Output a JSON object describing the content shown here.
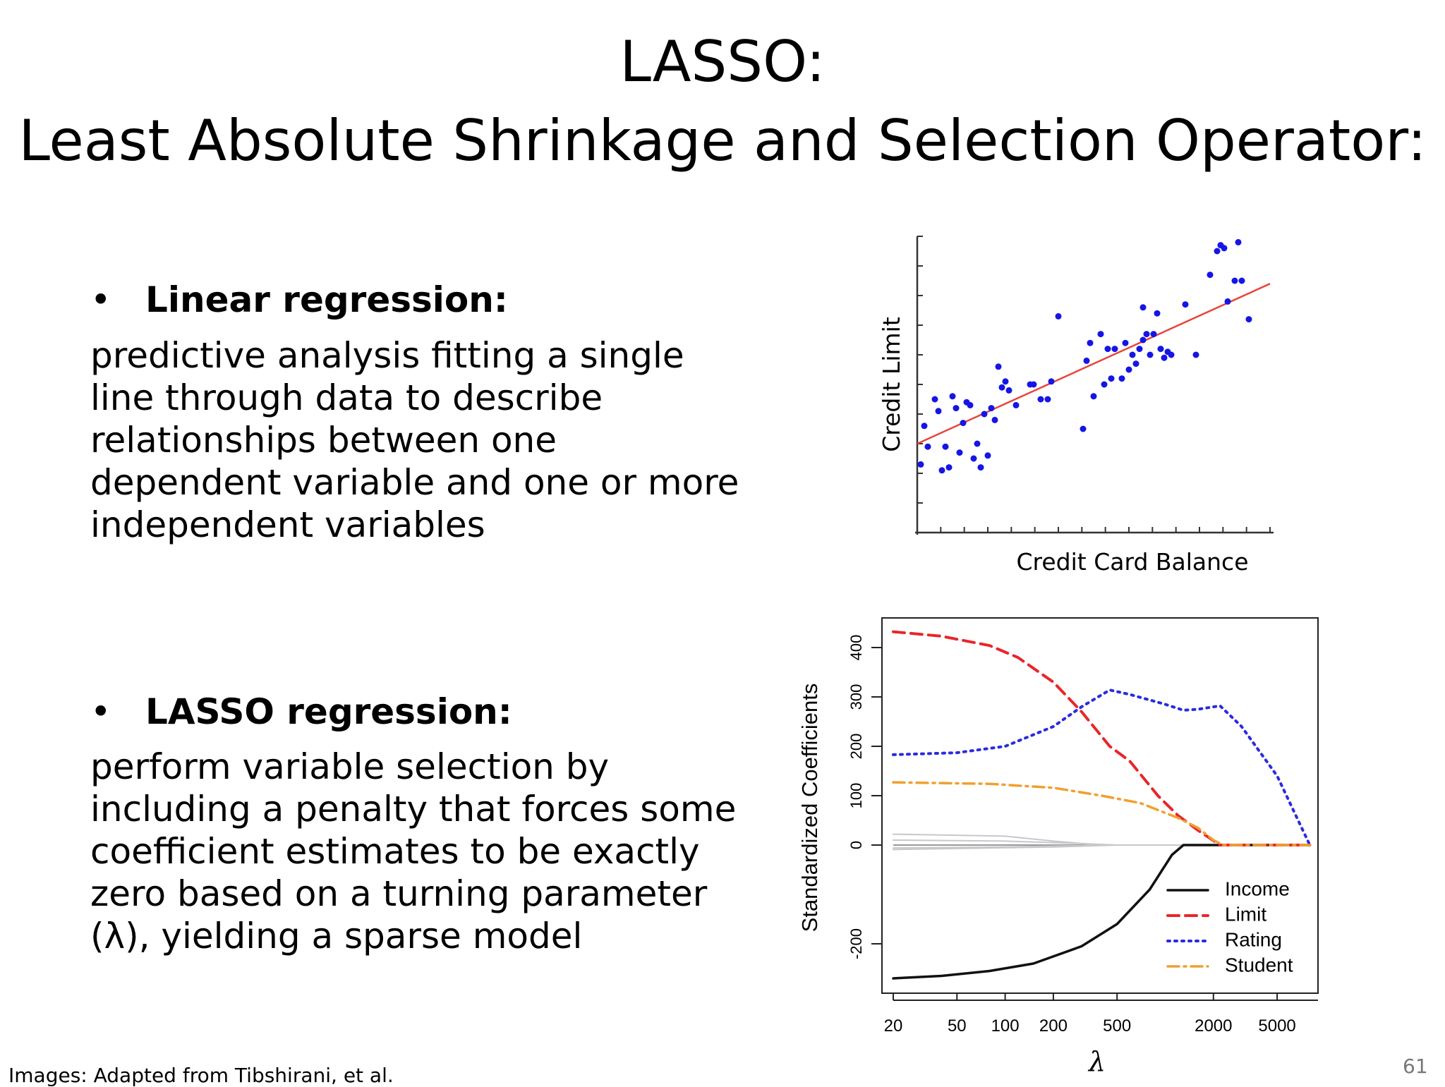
{
  "slide": {
    "title_line1": "LASSO:",
    "title_line2": "Least Absolute Shrinkage and Selection Operator:",
    "bullet_symbol": "•",
    "bullets": [
      {
        "heading": "Linear regression:",
        "text": "predictive analysis fitting a single line through data to describe relationships between one dependent variable and one or more independent variables"
      },
      {
        "heading": "LASSO regression:",
        "text": "perform variable selection by including a penalty that forces some coefficient estimates to be exactly zero based on a turning parameter (λ), yielding a sparse model"
      }
    ],
    "image_credit": "Images:  Adapted from Tibshirani, et al.",
    "page_number": "61"
  },
  "colors": {
    "points": "#1515e6",
    "fit_line": "#e8453c",
    "income": "#111111",
    "limit": "#e8262a",
    "rating": "#2b2bdd",
    "student": "#f0a030",
    "other": "#c8c8cc"
  },
  "chart_data": [
    {
      "type": "scatter",
      "xlabel": "Credit Card Balance",
      "ylabel": "Credit Limit",
      "xlim": [
        0,
        100
      ],
      "ylim": [
        0,
        100
      ],
      "grid": false,
      "points": [
        [
          1,
          23
        ],
        [
          2,
          36
        ],
        [
          3,
          29
        ],
        [
          5,
          45
        ],
        [
          6,
          41
        ],
        [
          7,
          21
        ],
        [
          8,
          29
        ],
        [
          9,
          22
        ],
        [
          10,
          46
        ],
        [
          11,
          42
        ],
        [
          12,
          27
        ],
        [
          13,
          37
        ],
        [
          14,
          44
        ],
        [
          15,
          43
        ],
        [
          16,
          25
        ],
        [
          17,
          30
        ],
        [
          18,
          22
        ],
        [
          19,
          40
        ],
        [
          20,
          26
        ],
        [
          21,
          42
        ],
        [
          22,
          38
        ],
        [
          23,
          56
        ],
        [
          24,
          49
        ],
        [
          25,
          51
        ],
        [
          26,
          48
        ],
        [
          28,
          43
        ],
        [
          32,
          50
        ],
        [
          33,
          50
        ],
        [
          35,
          45
        ],
        [
          37,
          45
        ],
        [
          38,
          51
        ],
        [
          40,
          73
        ],
        [
          47,
          35
        ],
        [
          48,
          58
        ],
        [
          49,
          64
        ],
        [
          50,
          46
        ],
        [
          52,
          67
        ],
        [
          53,
          50
        ],
        [
          54,
          62
        ],
        [
          55,
          52
        ],
        [
          56,
          62
        ],
        [
          58,
          52
        ],
        [
          59,
          64
        ],
        [
          60,
          55
        ],
        [
          61,
          60
        ],
        [
          62,
          57
        ],
        [
          63,
          62
        ],
        [
          64,
          76
        ],
        [
          64,
          65
        ],
        [
          65,
          67
        ],
        [
          66,
          60
        ],
        [
          67,
          67
        ],
        [
          68,
          74
        ],
        [
          69,
          62
        ],
        [
          70,
          59
        ],
        [
          71,
          61
        ],
        [
          72,
          60
        ],
        [
          76,
          77
        ],
        [
          79,
          60
        ],
        [
          83,
          87
        ],
        [
          85,
          95
        ],
        [
          86,
          97
        ],
        [
          87,
          96
        ],
        [
          88,
          78
        ],
        [
          90,
          85
        ],
        [
          91,
          98
        ],
        [
          92,
          85
        ],
        [
          94,
          72
        ]
      ],
      "fit_line": [
        [
          0,
          30
        ],
        [
          100,
          84
        ]
      ]
    },
    {
      "type": "line",
      "xlabel": "λ",
      "ylabel": "Standardized Coefficients",
      "x_scale": "log",
      "xlim": [
        17,
        9000
      ],
      "ylim": [
        -300,
        460
      ],
      "x_ticks": [
        20,
        50,
        100,
        200,
        500,
        2000,
        5000
      ],
      "y_ticks": [
        -200,
        0,
        100,
        200,
        300,
        400
      ],
      "legend": "bottom-right",
      "series": [
        {
          "name": "Income",
          "style": "solid",
          "points": [
            [
              20,
              -270
            ],
            [
              40,
              -265
            ],
            [
              80,
              -255
            ],
            [
              150,
              -240
            ],
            [
              300,
              -205
            ],
            [
              500,
              -160
            ],
            [
              800,
              -90
            ],
            [
              1100,
              -20
            ],
            [
              1300,
              0
            ],
            [
              8000,
              0
            ]
          ]
        },
        {
          "name": "Limit",
          "style": "dashed",
          "points": [
            [
              20,
              432
            ],
            [
              40,
              423
            ],
            [
              80,
              404
            ],
            [
              120,
              380
            ],
            [
              200,
              330
            ],
            [
              300,
              270
            ],
            [
              450,
              200
            ],
            [
              600,
              170
            ],
            [
              900,
              100
            ],
            [
              1200,
              60
            ],
            [
              1600,
              30
            ],
            [
              2200,
              0
            ],
            [
              8000,
              0
            ]
          ]
        },
        {
          "name": "Rating",
          "style": "dotted",
          "points": [
            [
              20,
              183
            ],
            [
              50,
              187
            ],
            [
              100,
              200
            ],
            [
              200,
              240
            ],
            [
              300,
              280
            ],
            [
              450,
              314
            ],
            [
              600,
              305
            ],
            [
              1000,
              285
            ],
            [
              1300,
              273
            ],
            [
              1600,
              275
            ],
            [
              2200,
              282
            ],
            [
              3000,
              240
            ],
            [
              5000,
              140
            ],
            [
              8000,
              0
            ]
          ]
        },
        {
          "name": "Student",
          "style": "dashdot",
          "points": [
            [
              20,
              127
            ],
            [
              80,
              124
            ],
            [
              200,
              116
            ],
            [
              400,
              100
            ],
            [
              700,
              85
            ],
            [
              1200,
              55
            ],
            [
              1600,
              35
            ],
            [
              2000,
              10
            ],
            [
              2300,
              0
            ],
            [
              8000,
              0
            ]
          ]
        },
        {
          "name": "",
          "style": "solid",
          "points": [
            [
              20,
              22
            ],
            [
              100,
              18
            ],
            [
              200,
              8
            ],
            [
              400,
              0
            ],
            [
              8000,
              0
            ]
          ]
        },
        {
          "name": "",
          "style": "solid",
          "points": [
            [
              20,
              10
            ],
            [
              100,
              8
            ],
            [
              300,
              3
            ],
            [
              500,
              0
            ],
            [
              8000,
              0
            ]
          ]
        },
        {
          "name": "",
          "style": "solid",
          "points": [
            [
              20,
              -6
            ],
            [
              100,
              -4
            ],
            [
              300,
              -1
            ],
            [
              400,
              0
            ],
            [
              8000,
              0
            ]
          ]
        },
        {
          "name": "",
          "style": "solid",
          "points": [
            [
              20,
              -9
            ],
            [
              200,
              -4
            ],
            [
              500,
              0
            ],
            [
              8000,
              0
            ]
          ]
        }
      ]
    }
  ]
}
